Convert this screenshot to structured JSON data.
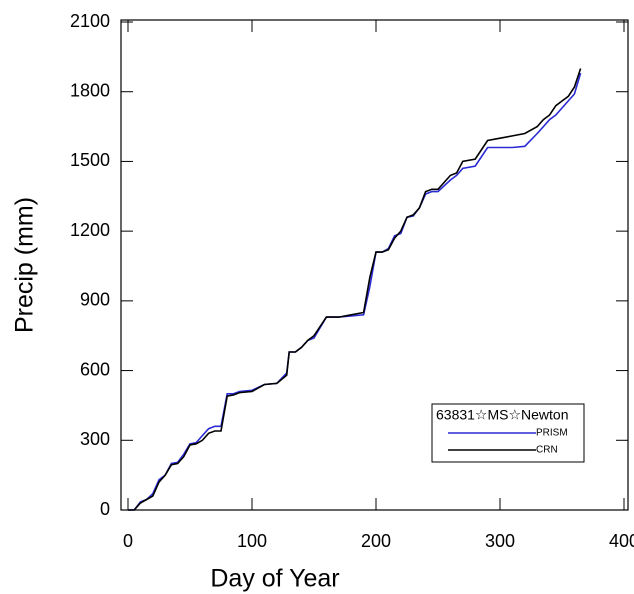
{
  "chart_data": {
    "type": "line",
    "x_label": "Day of Year",
    "y_label": "Precip (mm)",
    "legend_title": "63831☆MS☆Newton",
    "legend_position": "lower right",
    "x": [
      0,
      5,
      10,
      15,
      20,
      25,
      30,
      35,
      40,
      45,
      50,
      55,
      60,
      65,
      70,
      75,
      80,
      85,
      90,
      100,
      110,
      120,
      128,
      130,
      135,
      140,
      145,
      150,
      160,
      165,
      170,
      180,
      190,
      195,
      200,
      205,
      210,
      215,
      220,
      225,
      230,
      235,
      240,
      245,
      250,
      260,
      265,
      270,
      280,
      290,
      300,
      310,
      320,
      330,
      335,
      340,
      345,
      350,
      355,
      360,
      365
    ],
    "series": [
      {
        "name": "PRISM",
        "color": "#2b2bd4",
        "values": [
          0,
          0,
          35,
          45,
          70,
          130,
          150,
          200,
          205,
          240,
          285,
          290,
          320,
          350,
          360,
          360,
          500,
          500,
          510,
          515,
          540,
          545,
          590,
          680,
          680,
          700,
          730,
          740,
          830,
          830,
          830,
          835,
          840,
          960,
          1110,
          1110,
          1125,
          1180,
          1190,
          1260,
          1265,
          1300,
          1360,
          1370,
          1370,
          1420,
          1440,
          1470,
          1480,
          1560,
          1560,
          1560,
          1565,
          1620,
          1650,
          1680,
          1700,
          1730,
          1760,
          1790,
          1880
        ]
      },
      {
        "name": "CRN",
        "color": "#000000",
        "values": [
          0,
          0,
          30,
          45,
          60,
          120,
          150,
          195,
          200,
          230,
          280,
          285,
          300,
          330,
          340,
          340,
          490,
          495,
          505,
          510,
          540,
          545,
          580,
          680,
          680,
          700,
          730,
          750,
          830,
          830,
          830,
          840,
          850,
          1000,
          1110,
          1110,
          1120,
          1170,
          1200,
          1260,
          1270,
          1300,
          1370,
          1380,
          1380,
          1440,
          1450,
          1500,
          1510,
          1590,
          1600,
          1610,
          1620,
          1650,
          1680,
          1700,
          1740,
          1760,
          1780,
          1820,
          1900
        ]
      }
    ],
    "xlim": [
      0,
      400
    ],
    "xticks": [
      0,
      100,
      200,
      300,
      400
    ],
    "ylim": [
      0,
      2100
    ],
    "yticks": [
      0,
      300,
      600,
      900,
      1200,
      1500,
      1800,
      2100
    ]
  }
}
